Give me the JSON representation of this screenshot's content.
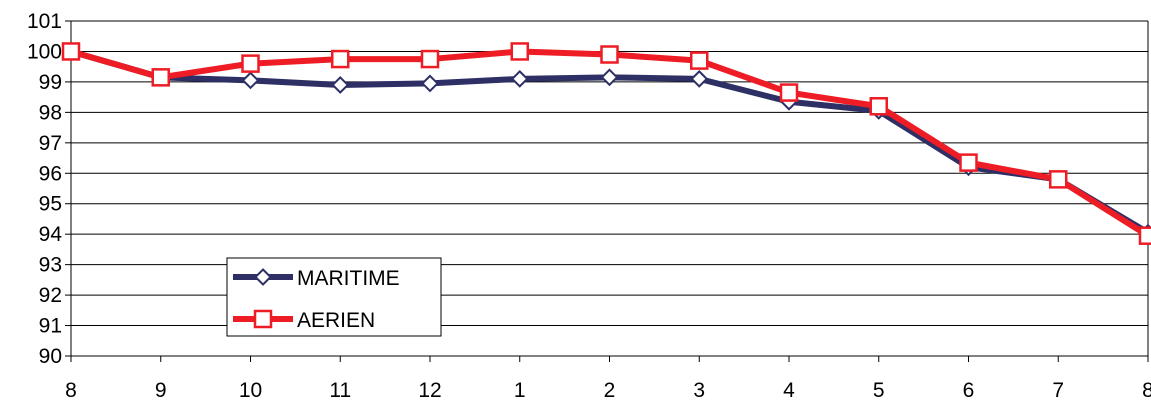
{
  "chart_data": {
    "type": "line",
    "title": "",
    "xlabel": "",
    "ylabel": "",
    "categories": [
      "8",
      "9",
      "10",
      "11",
      "12",
      "1",
      "2",
      "3",
      "4",
      "5",
      "6",
      "7",
      "8"
    ],
    "ylim": [
      90,
      101
    ],
    "yticks": [
      "90",
      "91",
      "92",
      "93",
      "94",
      "95",
      "96",
      "97",
      "98",
      "99",
      "100",
      "101"
    ],
    "grid": "horizontal",
    "legend_position": "lower-left",
    "series": [
      {
        "name": "MARITIME",
        "color": "#2e3065",
        "marker": "diamond",
        "values": [
          100,
          99.15,
          99.05,
          98.9,
          98.95,
          99.1,
          99.15,
          99.1,
          98.35,
          98.05,
          96.2,
          95.8,
          94.05
        ]
      },
      {
        "name": "AERIEN",
        "color": "#ee1c25",
        "marker": "square",
        "values": [
          100,
          99.15,
          99.6,
          99.75,
          99.75,
          100,
          99.9,
          99.7,
          98.65,
          98.2,
          96.35,
          95.8,
          93.95
        ]
      }
    ]
  }
}
